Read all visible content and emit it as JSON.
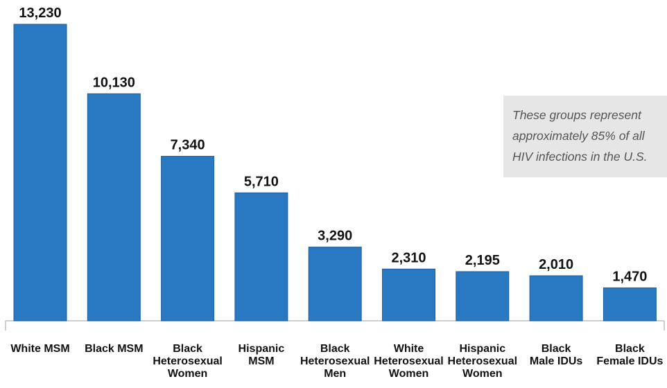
{
  "chart_data": {
    "type": "bar",
    "categories": [
      "White MSM",
      "Black MSM",
      "Black Heterosexual Women",
      "Hispanic MSM",
      "Black Heterosexual Men",
      "White Heterosexual Women",
      "Hispanic Heterosexual Women",
      "Black Male IDUs",
      "Black Female IDUs"
    ],
    "category_lines": [
      [
        "White MSM"
      ],
      [
        "Black MSM"
      ],
      [
        "Black",
        "Heterosexual",
        "Women"
      ],
      [
        "Hispanic",
        "MSM"
      ],
      [
        "Black",
        "Heterosexual",
        "Men"
      ],
      [
        "White",
        "Heterosexual",
        "Women"
      ],
      [
        "Hispanic",
        "Heterosexual",
        "Women"
      ],
      [
        "Black",
        "Male IDUs"
      ],
      [
        "Black",
        "Female IDUs"
      ]
    ],
    "values": [
      13230,
      10130,
      7340,
      5710,
      3290,
      2310,
      2195,
      2010,
      1470
    ],
    "value_labels": [
      "13,230",
      "10,130",
      "7,340",
      "5,710",
      "3,290",
      "2,310",
      "2,195",
      "2,010",
      "1,470"
    ],
    "ylim": [
      0,
      13230
    ],
    "grid": false,
    "bar_color": "#2878c2",
    "annotation": "These groups represent approximately 85% of all HIV infections in the U.S."
  }
}
